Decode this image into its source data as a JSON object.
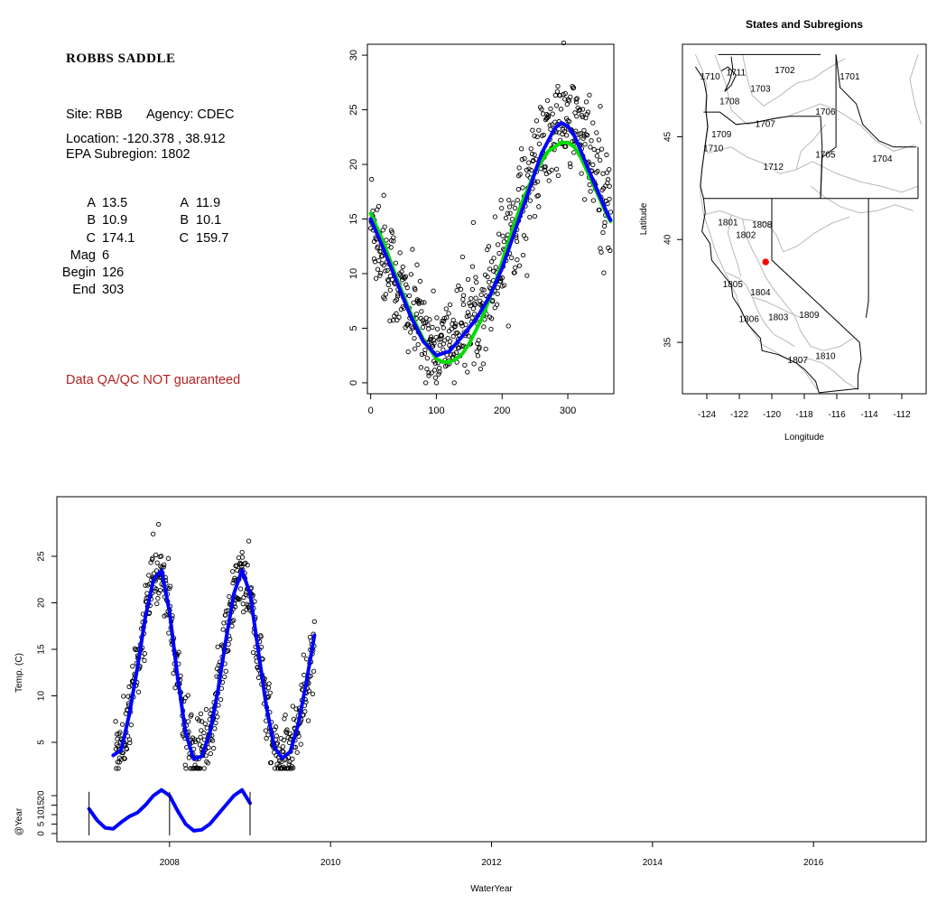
{
  "info": {
    "title": "ROBBS SADDLE",
    "site_label": "Site: RBB",
    "agency_label": "Agency: CDEC",
    "location_label": "Location: -120.378 , 38.912",
    "subregion_label": "EPA Subregion: 1802",
    "params": [
      {
        "key": "A",
        "value": "13.5",
        "key2": "A",
        "value2": "11.9"
      },
      {
        "key": "B",
        "value": "10.9",
        "key2": "B",
        "value2": "10.1"
      },
      {
        "key": "C",
        "value": "174.1",
        "key2": "C",
        "value2": "159.7"
      },
      {
        "key": "Mag",
        "value": "6",
        "key2": "",
        "value2": ""
      },
      {
        "key": "Begin",
        "value": "126",
        "key2": "",
        "value2": ""
      },
      {
        "key": "End",
        "value": "303",
        "key2": "",
        "value2": ""
      }
    ],
    "qa_note": "Data QA/QC NOT guaranteed",
    "qa_color": "#b22222"
  },
  "chart_data": [
    {
      "id": "seasonal",
      "type": "scatter",
      "title": "",
      "xlabel": "",
      "ylabel": "",
      "xlim": [
        -5,
        370
      ],
      "ylim": [
        -1,
        31
      ],
      "xticks": [
        0,
        100,
        200,
        300
      ],
      "yticks": [
        0,
        5,
        10,
        15,
        20,
        25,
        30
      ],
      "grid": false,
      "scatter": {
        "description_points": "daily temperature vs day of water year, ~600 points",
        "envelope": [
          [
            0,
            15
          ],
          [
            50,
            7.5
          ],
          [
            100,
            3
          ],
          [
            130,
            4.5
          ],
          [
            170,
            7
          ],
          [
            200,
            12
          ],
          [
            230,
            16.5
          ],
          [
            260,
            21
          ],
          [
            290,
            24
          ],
          [
            320,
            23
          ],
          [
            340,
            19
          ],
          [
            365,
            16
          ]
        ],
        "spread": [
          [
            0,
            5
          ],
          [
            100,
            3.5
          ],
          [
            200,
            4.5
          ],
          [
            300,
            4
          ],
          [
            365,
            6
          ]
        ]
      },
      "series": [
        {
          "color": "#0000ff",
          "x": [
            0,
            20,
            40,
            60,
            80,
            100,
            120,
            140,
            160,
            180,
            200,
            220,
            240,
            260,
            280,
            290,
            300,
            310,
            320,
            340,
            360,
            365
          ],
          "y": [
            15,
            12.2,
            9.2,
            6.2,
            3.8,
            2.5,
            2.9,
            4.3,
            5.8,
            7.8,
            10.5,
            14,
            17.5,
            21,
            23.3,
            23.8,
            23.5,
            22.6,
            21.2,
            18.3,
            15.5,
            14.9
          ]
        },
        {
          "color": "#00dd00",
          "x": [
            0,
            20,
            40,
            60,
            80,
            100,
            110,
            120,
            130,
            140,
            150,
            170,
            190,
            210,
            230,
            250,
            270,
            290,
            300,
            310,
            320,
            340,
            360,
            365
          ],
          "y": [
            15.5,
            12.8,
            9.5,
            6.5,
            4,
            2.2,
            1.9,
            1.9,
            2.2,
            2.7,
            3.6,
            6,
            9.2,
            13,
            16.5,
            19.3,
            21.2,
            22,
            22,
            21.6,
            20.6,
            18,
            15.3,
            14.8
          ]
        }
      ]
    },
    {
      "id": "map",
      "type": "map",
      "title": "States and Subregions",
      "xlabel": "Longitude",
      "ylabel": "Latitude",
      "xlim": [
        -125.5,
        -110.5
      ],
      "ylim": [
        32.5,
        49.5
      ],
      "xticks": [
        -124,
        -122,
        -120,
        -118,
        -116,
        -114,
        -112
      ],
      "yticks": [
        35,
        40,
        45
      ],
      "site": {
        "lon": -120.378,
        "lat": 38.912,
        "color": "#ff0000"
      },
      "regions": [
        {
          "label": "1711",
          "lon": -122.2,
          "lat": 48.1
        },
        {
          "label": "1710",
          "lon": -123.8,
          "lat": 47.9
        },
        {
          "label": "1702",
          "lon": -119.2,
          "lat": 48.2
        },
        {
          "label": "1701",
          "lon": -115.2,
          "lat": 47.9
        },
        {
          "label": "1703",
          "lon": -120.7,
          "lat": 47.3
        },
        {
          "label": "1708",
          "lon": -122.6,
          "lat": 46.7
        },
        {
          "label": "1706",
          "lon": -116.7,
          "lat": 46.2
        },
        {
          "label": "1707",
          "lon": -120.4,
          "lat": 45.6
        },
        {
          "label": "1709",
          "lon": -123.1,
          "lat": 45.1
        },
        {
          "label": "1710",
          "lon": -123.6,
          "lat": 44.4
        },
        {
          "label": "1705",
          "lon": -116.7,
          "lat": 44.1
        },
        {
          "label": "1704",
          "lon": -113.2,
          "lat": 43.9
        },
        {
          "label": "1712",
          "lon": -119.9,
          "lat": 43.5
        },
        {
          "label": "1801",
          "lon": -122.7,
          "lat": 40.8
        },
        {
          "label": "1808",
          "lon": -120.6,
          "lat": 40.7
        },
        {
          "label": "1802",
          "lon": -121.6,
          "lat": 40.2
        },
        {
          "label": "1805",
          "lon": -122.4,
          "lat": 37.8
        },
        {
          "label": "1804",
          "lon": -120.7,
          "lat": 37.4
        },
        {
          "label": "1806",
          "lon": -121.4,
          "lat": 36.1
        },
        {
          "label": "1803",
          "lon": -119.6,
          "lat": 36.2
        },
        {
          "label": "1809",
          "lon": -117.7,
          "lat": 36.3
        },
        {
          "label": "1807",
          "lon": -118.4,
          "lat": 34.1
        },
        {
          "label": "1810",
          "lon": -116.7,
          "lat": 34.3
        }
      ]
    },
    {
      "id": "timeseries",
      "type": "scatter",
      "title": "",
      "xlabel": "WaterYear",
      "ylabel": "Temp. (C)",
      "ylabel2": "@Year",
      "xlim": [
        2006.6,
        2017.4
      ],
      "ylim": [
        0,
        30
      ],
      "xticks": [
        2008,
        2010,
        2012,
        2014,
        2016
      ],
      "yticks": [
        5,
        10,
        15,
        20,
        25
      ],
      "yticks2": [
        0,
        5,
        10,
        15,
        20
      ],
      "grid": false,
      "series": [
        {
          "color": "#0000ff",
          "x": [
            2007.3,
            2007.4,
            2007.5,
            2007.6,
            2007.7,
            2007.8,
            2007.9,
            2008.0,
            2008.1,
            2008.2,
            2008.3,
            2008.4,
            2008.5,
            2008.6,
            2008.7,
            2008.8,
            2008.9,
            2009.0,
            2009.1,
            2009.2,
            2009.3,
            2009.4,
            2009.5,
            2009.6,
            2009.7,
            2009.8
          ],
          "y": [
            3.6,
            4.2,
            8,
            13,
            18.5,
            22.5,
            23.5,
            19,
            12,
            6,
            3.2,
            3.5,
            6,
            10.5,
            16,
            21,
            23.5,
            21,
            15,
            9,
            4.5,
            3.3,
            4,
            7,
            11.5,
            16.5
          ]
        },
        {
          "name": "",
          "color": "#0000ff",
          "x": [
            2007.0,
            2007.1,
            2007.2,
            2007.3,
            2007.4,
            2007.5,
            2007.6,
            2007.7,
            2007.8,
            2007.9,
            2008.0,
            2008.1,
            2008.2,
            2008.3,
            2008.4,
            2008.5,
            2008.6,
            2008.7,
            2008.8,
            2008.9,
            2009.0
          ],
          "y": [
            13,
            7,
            3,
            2.5,
            6,
            9,
            11,
            15,
            20,
            23,
            20,
            12,
            5,
            1.5,
            2,
            5,
            10,
            15,
            20,
            23,
            16
          ]
        }
      ],
      "vlines_x": [
        2007.0,
        2008.0,
        2009.0
      ]
    }
  ]
}
